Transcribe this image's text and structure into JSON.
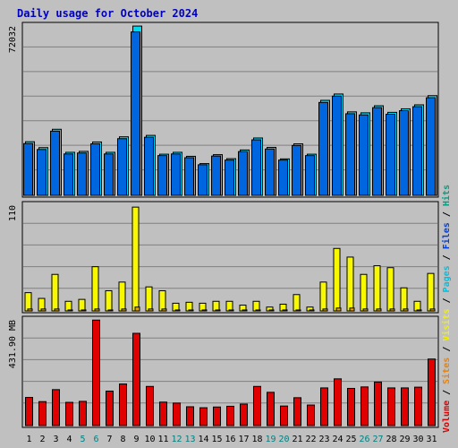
{
  "chart_data": {
    "type": "bar",
    "title": "Daily usage for October 2024",
    "categories": [
      "1",
      "2",
      "3",
      "4",
      "5",
      "6",
      "7",
      "8",
      "9",
      "10",
      "11",
      "12",
      "13",
      "14",
      "15",
      "16",
      "17",
      "18",
      "19",
      "20",
      "21",
      "22",
      "23",
      "24",
      "25",
      "26",
      "27",
      "28",
      "29",
      "30",
      "31"
    ],
    "weekend_days": [
      "5",
      "6",
      "12",
      "13",
      "19",
      "20",
      "26",
      "27"
    ],
    "panels": [
      {
        "id": "hits-files",
        "max_label": "72032",
        "ymax": 72032,
        "series": [
          {
            "name": "Hits",
            "color": "#00d8f0",
            "values": [
              22800,
              20300,
              28100,
              18300,
              18700,
              22700,
              18300,
              24900,
              72000,
              25500,
              17500,
              18300,
              16600,
              13500,
              17300,
              15600,
              19300,
              24400,
              20400,
              15500,
              21900,
              17500,
              40400,
              43100,
              35500,
              35100,
              38100,
              35300,
              36800,
              38500,
              42400
            ]
          },
          {
            "name": "Files",
            "color": "#0066e0",
            "values": [
              22000,
              19500,
              27300,
              17600,
              18000,
              21900,
              17600,
              24100,
              69500,
              24700,
              16900,
              17600,
              16000,
              13000,
              16700,
              15000,
              18600,
              23600,
              19700,
              15000,
              21200,
              16900,
              39500,
              42200,
              34700,
              34200,
              37300,
              34500,
              36000,
              37700,
              41500
            ]
          }
        ]
      },
      {
        "id": "visits",
        "max_label": "110",
        "ymax": 110,
        "series": [
          {
            "name": "Visits",
            "color": "#f8f800",
            "values": [
              19,
              13,
              38,
              10,
              12,
              46,
              21,
              30,
              108,
              25,
              21,
              8,
              9,
              8,
              10,
              10,
              6,
              10,
              4,
              7,
              17,
              4,
              30,
              65,
              56,
              38,
              47,
              45,
              24,
              10,
              39
            ]
          },
          {
            "name": "Pages",
            "color": "#e8a000",
            "values": [
              2,
              2,
              2,
              1,
              1,
              2,
              1,
              2,
              4,
              2,
              2,
              1,
              1,
              1,
              1,
              1,
              1,
              1,
              1,
              1,
              1,
              1,
              2,
              3,
              3,
              2,
              2,
              2,
              2,
              1,
              2
            ]
          }
        ]
      },
      {
        "id": "volume",
        "max_label": "431.90 MB",
        "ymax": 431.9,
        "series": [
          {
            "name": "Volume",
            "color": "#e00000",
            "values": [
              115,
              98,
              147,
              95,
              99,
              431,
              141,
              170,
              377,
              160,
              96,
              92,
              77,
              73,
              76,
              79,
              88,
              160,
              136,
              80,
              114,
              84,
              154,
              191,
              152,
              158,
              178,
              154,
              154,
              157,
              272
            ]
          }
        ]
      }
    ],
    "legend": [
      "Volume",
      "Sites",
      "Visits",
      "Pages",
      "Files",
      "Hits"
    ],
    "legend_separator": "/",
    "legend_colors": [
      "#e00000",
      "#f08000",
      "#f0f000",
      "#00c0e0",
      "#0040e0",
      "#00a080"
    ],
    "grid": true
  }
}
